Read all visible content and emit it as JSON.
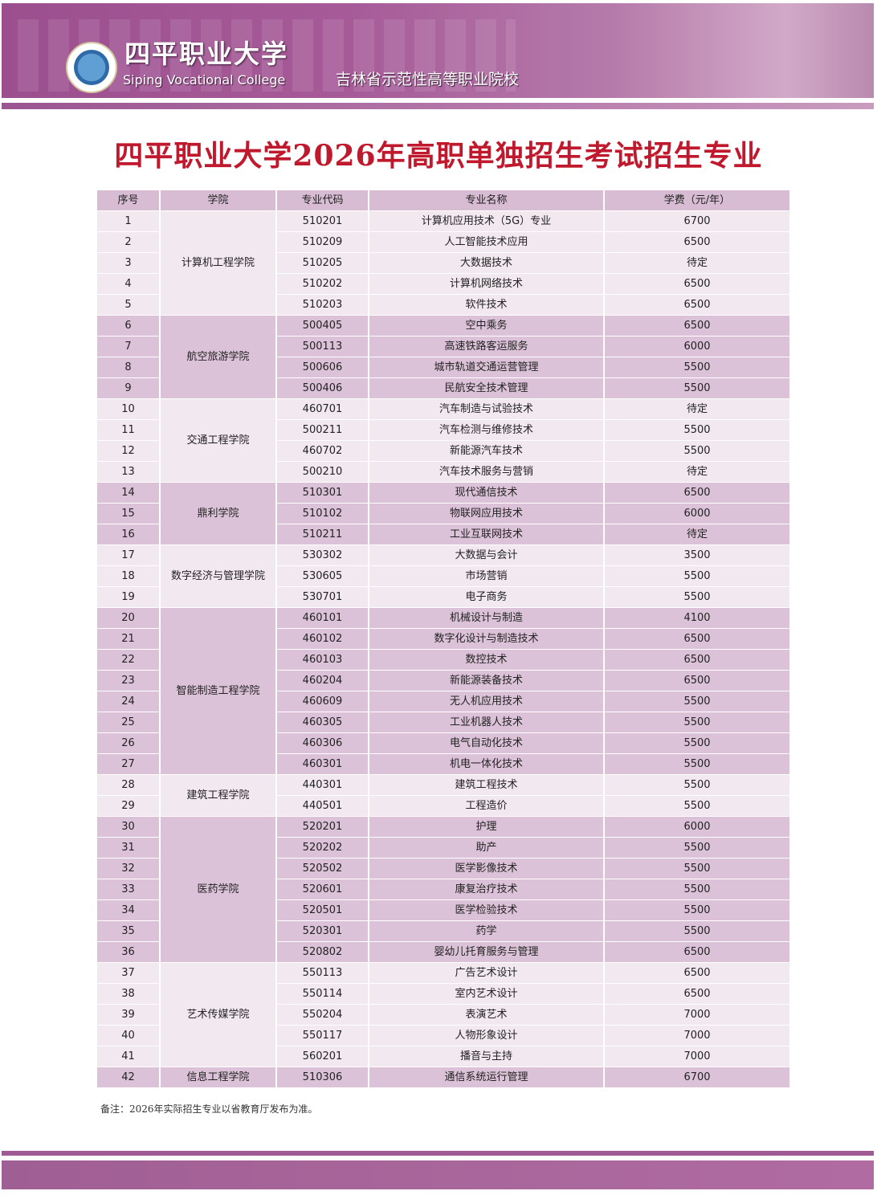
{
  "header": {
    "college_cn": "四平职业大学",
    "college_en": "Siping Vocational College",
    "tagline": "吉林省示范性高等职业院校"
  },
  "title": "四平职业大学2026年高职单独招生考试招生专业",
  "table": {
    "columns": [
      "序号",
      "学院",
      "专业代码",
      "专业名称",
      "学费（元/年）"
    ],
    "groups": [
      {
        "college": "计算机工程学院",
        "shade": "light",
        "rows": [
          {
            "no": "1",
            "code": "510201",
            "name": "计算机应用技术（5G）专业",
            "fee": "6700"
          },
          {
            "no": "2",
            "code": "510209",
            "name": "人工智能技术应用",
            "fee": "6500"
          },
          {
            "no": "3",
            "code": "510205",
            "name": "大数据技术",
            "fee": "待定"
          },
          {
            "no": "4",
            "code": "510202",
            "name": "计算机网络技术",
            "fee": "6500"
          },
          {
            "no": "5",
            "code": "510203",
            "name": "软件技术",
            "fee": "6500"
          }
        ]
      },
      {
        "college": "航空旅游学院",
        "shade": "dark",
        "rows": [
          {
            "no": "6",
            "code": "500405",
            "name": "空中乘务",
            "fee": "6500"
          },
          {
            "no": "7",
            "code": "500113",
            "name": "高速铁路客运服务",
            "fee": "6000"
          },
          {
            "no": "8",
            "code": "500606",
            "name": "城市轨道交通运营管理",
            "fee": "5500"
          },
          {
            "no": "9",
            "code": "500406",
            "name": "民航安全技术管理",
            "fee": "5500"
          }
        ]
      },
      {
        "college": "交通工程学院",
        "shade": "light",
        "rows": [
          {
            "no": "10",
            "code": "460701",
            "name": "汽车制造与试验技术",
            "fee": "待定"
          },
          {
            "no": "11",
            "code": "500211",
            "name": "汽车检测与维修技术",
            "fee": "5500"
          },
          {
            "no": "12",
            "code": "460702",
            "name": "新能源汽车技术",
            "fee": "5500"
          },
          {
            "no": "13",
            "code": "500210",
            "name": "汽车技术服务与营销",
            "fee": "待定"
          }
        ]
      },
      {
        "college": "鼎利学院",
        "shade": "dark",
        "rows": [
          {
            "no": "14",
            "code": "510301",
            "name": "现代通信技术",
            "fee": "6500"
          },
          {
            "no": "15",
            "code": "510102",
            "name": "物联网应用技术",
            "fee": "6000"
          },
          {
            "no": "16",
            "code": "510211",
            "name": "工业互联网技术",
            "fee": "待定"
          }
        ]
      },
      {
        "college": "数字经济与管理学院",
        "shade": "light",
        "rows": [
          {
            "no": "17",
            "code": "530302",
            "name": "大数据与会计",
            "fee": "3500"
          },
          {
            "no": "18",
            "code": "530605",
            "name": "市场营销",
            "fee": "5500"
          },
          {
            "no": "19",
            "code": "530701",
            "name": "电子商务",
            "fee": "5500"
          }
        ]
      },
      {
        "college": "智能制造工程学院",
        "shade": "dark",
        "rows": [
          {
            "no": "20",
            "code": "460101",
            "name": "机械设计与制造",
            "fee": "4100"
          },
          {
            "no": "21",
            "code": "460102",
            "name": "数字化设计与制造技术",
            "fee": "6500"
          },
          {
            "no": "22",
            "code": "460103",
            "name": "数控技术",
            "fee": "6500"
          },
          {
            "no": "23",
            "code": "460204",
            "name": "新能源装备技术",
            "fee": "6500"
          },
          {
            "no": "24",
            "code": "460609",
            "name": "无人机应用技术",
            "fee": "5500"
          },
          {
            "no": "25",
            "code": "460305",
            "name": "工业机器人技术",
            "fee": "5500"
          },
          {
            "no": "26",
            "code": "460306",
            "name": "电气自动化技术",
            "fee": "5500"
          },
          {
            "no": "27",
            "code": "460301",
            "name": "机电一体化技术",
            "fee": "5500"
          }
        ]
      },
      {
        "college": "建筑工程学院",
        "shade": "light",
        "rows": [
          {
            "no": "28",
            "code": "440301",
            "name": "建筑工程技术",
            "fee": "5500"
          },
          {
            "no": "29",
            "code": "440501",
            "name": "工程造价",
            "fee": "5500"
          }
        ]
      },
      {
        "college": "医药学院",
        "shade": "dark",
        "rows": [
          {
            "no": "30",
            "code": "520201",
            "name": "护理",
            "fee": "6000"
          },
          {
            "no": "31",
            "code": "520202",
            "name": "助产",
            "fee": "5500"
          },
          {
            "no": "32",
            "code": "520502",
            "name": "医学影像技术",
            "fee": "5500"
          },
          {
            "no": "33",
            "code": "520601",
            "name": "康复治疗技术",
            "fee": "5500"
          },
          {
            "no": "34",
            "code": "520501",
            "name": "医学检验技术",
            "fee": "5500"
          },
          {
            "no": "35",
            "code": "520301",
            "name": "药学",
            "fee": "5500"
          },
          {
            "no": "36",
            "code": "520802",
            "name": "婴幼儿托育服务与管理",
            "fee": "6500"
          }
        ]
      },
      {
        "college": "艺术传媒学院",
        "shade": "light",
        "rows": [
          {
            "no": "37",
            "code": "550113",
            "name": "广告艺术设计",
            "fee": "6500"
          },
          {
            "no": "38",
            "code": "550114",
            "name": "室内艺术设计",
            "fee": "6500"
          },
          {
            "no": "39",
            "code": "550204",
            "name": "表演艺术",
            "fee": "7000"
          },
          {
            "no": "40",
            "code": "550117",
            "name": "人物形象设计",
            "fee": "7000"
          },
          {
            "no": "41",
            "code": "560201",
            "name": "播音与主持",
            "fee": "7000"
          }
        ]
      },
      {
        "college": "信息工程学院",
        "shade": "dark",
        "rows": [
          {
            "no": "42",
            "code": "510306",
            "name": "通信系统运行管理",
            "fee": "6700"
          }
        ]
      }
    ]
  },
  "note": "备注：2026年实际招生专业以省教育厅发布为准。",
  "colors": {
    "brand_purple": "#a05a93",
    "title_red": "#c0182c",
    "row_light": "#f2e8f0",
    "row_dark": "#dcc2d8",
    "header_row": "#d7bcd3"
  }
}
